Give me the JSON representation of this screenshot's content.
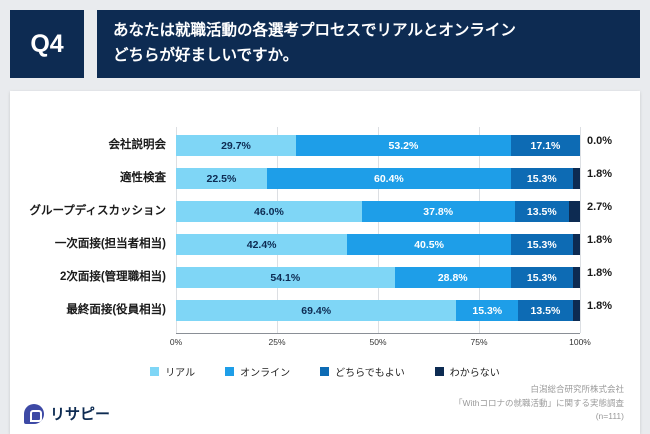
{
  "header": {
    "q_label": "Q4",
    "title_lines": [
      "あなたは就職活動の各選考プロセスでリアルとオンライン",
      "どちらが好ましいですか。"
    ]
  },
  "chart_data": {
    "type": "bar",
    "variant": "horizontal-stacked",
    "title": "あなたは就職活動の各選考プロセスでリアルとオンラインどちらが好ましいですか。",
    "categories": [
      "会社説明会",
      "適性検査",
      "グループディスカッション",
      "一次面接(担当者相当)",
      "2次面接(管理職相当)",
      "最終面接(役員相当)"
    ],
    "series": [
      {
        "name": "リアル",
        "color": "#7FD6F6",
        "values": [
          29.7,
          22.5,
          46.0,
          42.4,
          54.1,
          69.4
        ]
      },
      {
        "name": "オンライン",
        "color": "#1E9EE8",
        "values": [
          53.2,
          60.4,
          37.8,
          40.5,
          28.8,
          15.3
        ]
      },
      {
        "name": "どちらでもよい",
        "color": "#0D6BB4",
        "values": [
          17.1,
          15.3,
          13.5,
          15.3,
          15.3,
          13.5
        ]
      },
      {
        "name": "わからない",
        "color": "#0D2B52",
        "values": [
          0.0,
          1.8,
          2.7,
          1.8,
          1.8,
          1.8
        ]
      }
    ],
    "outside_labels": [
      "0.0%",
      "1.8%",
      "2.7%",
      "1.8%",
      "1.8%",
      "1.8%"
    ],
    "x_ticks": [
      "0%",
      "25%",
      "50%",
      "75%",
      "100%"
    ],
    "xlim": [
      0,
      100
    ],
    "grid": true,
    "legend_position": "bottom"
  },
  "footer": {
    "logo_text": "リサピー",
    "credit_lines": [
      "白潟総合研究所株式会社",
      "「Withコロナの就職活動」に関する実態調査",
      "(n=111)"
    ]
  }
}
